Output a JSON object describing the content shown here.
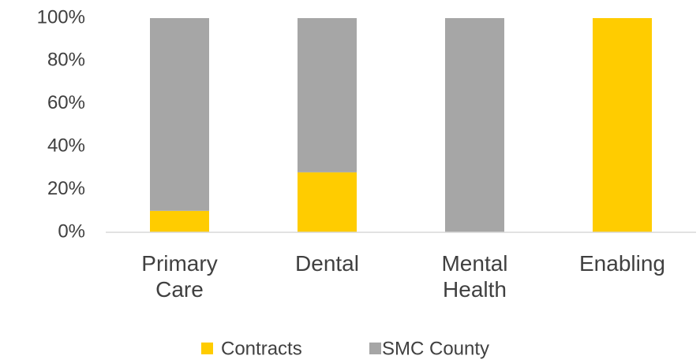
{
  "chart_data": {
    "type": "stacked_bar",
    "categories": [
      "Primary Care",
      "Dental",
      "Mental Health",
      "Enabling"
    ],
    "series": [
      {
        "name": "Contracts",
        "color": "#ffcc00",
        "values": [
          10,
          28,
          0,
          100
        ]
      },
      {
        "name": "SMC County",
        "color": "#a6a6a6",
        "values": [
          90,
          72,
          100,
          0
        ]
      }
    ],
    "ylim": [
      0,
      100
    ],
    "yticks": [
      {
        "value": 0,
        "label": "0%"
      },
      {
        "value": 20,
        "label": "20%"
      },
      {
        "value": 40,
        "label": "40%"
      },
      {
        "value": 60,
        "label": "60%"
      },
      {
        "value": 80,
        "label": "80%"
      },
      {
        "value": 100,
        "label": "100%"
      }
    ],
    "grid": false,
    "legend": "bottom"
  }
}
